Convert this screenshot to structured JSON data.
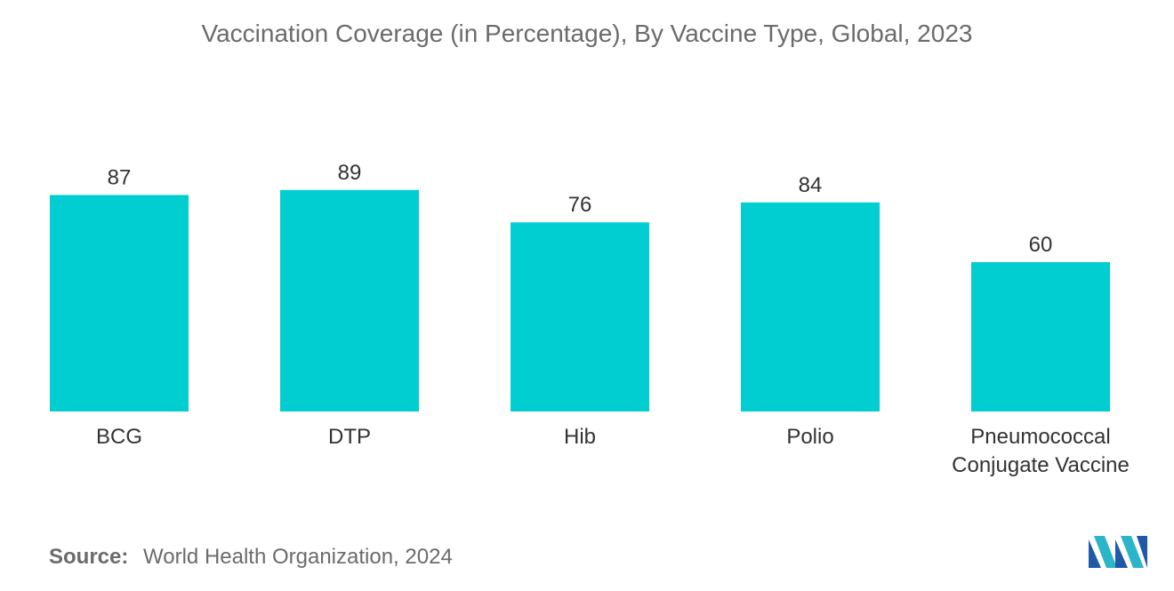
{
  "chart_data": {
    "type": "bar",
    "title": "Vaccination Coverage (in Percentage), By Vaccine Type, Global,  2023",
    "categories": [
      "BCG",
      "DTP",
      "Hib",
      "Polio",
      "Pneumococcal Conjugate Vaccine"
    ],
    "category_lines": [
      [
        "BCG"
      ],
      [
        "DTP"
      ],
      [
        "Hib"
      ],
      [
        "Polio"
      ],
      [
        "Pneumococcal",
        "Conjugate Vaccine"
      ]
    ],
    "values": [
      87,
      89,
      76,
      84,
      60
    ],
    "xlabel": "",
    "ylabel": "",
    "ylim": [
      0,
      100
    ],
    "grid": false,
    "bar_color": "#00ced1"
  },
  "source": {
    "label": "Source:",
    "text": "World Health Organization, 2024"
  },
  "logo": {
    "icon": "mordor-intelligence-logo-icon",
    "colors": [
      "#1e5aa8",
      "#2bb5c8"
    ]
  }
}
